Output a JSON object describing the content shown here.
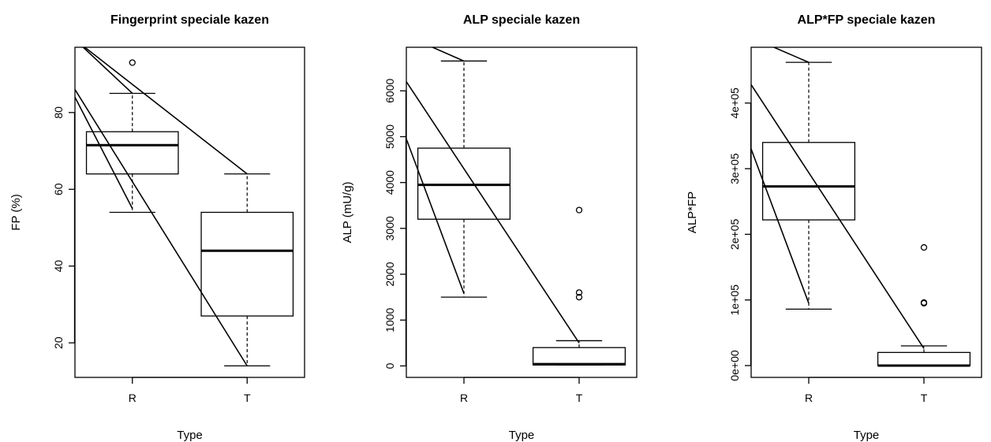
{
  "chart_data": [
    {
      "type": "box",
      "title": "Fingerprint speciale kazen",
      "xlabel": "Type",
      "ylabel": "FP (%)",
      "categories": [
        "R",
        "T"
      ],
      "yticks": [
        20,
        40,
        60,
        80
      ],
      "ylim": [
        11,
        97
      ],
      "boxes": [
        {
          "category": "R",
          "min": 54,
          "q1": 64,
          "median": 71.5,
          "q3": 75,
          "max": 85,
          "outliers": [
            93
          ]
        },
        {
          "category": "T",
          "min": 14,
          "q1": 27,
          "median": 44,
          "q3": 54,
          "max": 64,
          "outliers": []
        }
      ],
      "lines": [
        {
          "x1": 0.5,
          "y1": 99,
          "x2": 2,
          "y2": 64
        },
        {
          "x1": 0.5,
          "y1": 99,
          "x2": 1,
          "y2": 85
        },
        {
          "x1": 0.5,
          "y1": 86,
          "x2": 2,
          "y2": 14
        },
        {
          "x1": 0.5,
          "y1": 84,
          "x2": 1,
          "y2": 55
        }
      ]
    },
    {
      "type": "box",
      "title": "ALP speciale kazen",
      "xlabel": "Type",
      "ylabel": "ALP (mU/g)",
      "categories": [
        "R",
        "T"
      ],
      "yticks": [
        0,
        1000,
        2000,
        3000,
        4000,
        5000,
        6000
      ],
      "ylim": [
        -250,
        6950
      ],
      "boxes": [
        {
          "category": "R",
          "min": 1500,
          "q1": 3200,
          "median": 3950,
          "q3": 4750,
          "max": 6650,
          "outliers": []
        },
        {
          "category": "T",
          "min": 20,
          "q1": 20,
          "median": 40,
          "q3": 400,
          "max": 550,
          "outliers": [
            1500,
            1600,
            3400
          ]
        }
      ],
      "lines": [
        {
          "x1": 0.5,
          "y1": 7200,
          "x2": 1,
          "y2": 6650
        },
        {
          "x1": 0.5,
          "y1": 6200,
          "x2": 2,
          "y2": 500
        },
        {
          "x1": 0.5,
          "y1": 4950,
          "x2": 1,
          "y2": 1580
        }
      ]
    },
    {
      "type": "box",
      "title": "ALP*FP speciale kazen",
      "xlabel": "Type",
      "ylabel": "ALP*FP",
      "categories": [
        "R",
        "T"
      ],
      "yticks": [
        0,
        100000,
        200000,
        300000,
        400000
      ],
      "ytick_labels": [
        "0e+00",
        "1e+05",
        "2e+05",
        "3e+05",
        "4e+05"
      ],
      "ylim": [
        -18000,
        485000
      ],
      "boxes": [
        {
          "category": "R",
          "min": 86000,
          "q1": 222000,
          "median": 273000,
          "q3": 340000,
          "max": 462000,
          "outliers": []
        },
        {
          "category": "T",
          "min": 0,
          "q1": 0,
          "median": 0,
          "q3": 20000,
          "max": 30000,
          "outliers": [
            95000,
            96000,
            180000
          ]
        }
      ],
      "lines": [
        {
          "x1": 0.5,
          "y1": 500000,
          "x2": 1,
          "y2": 462000
        },
        {
          "x1": 0.5,
          "y1": 428000,
          "x2": 2,
          "y2": 26000
        },
        {
          "x1": 0.5,
          "y1": 330000,
          "x2": 1,
          "y2": 95000
        }
      ]
    }
  ]
}
